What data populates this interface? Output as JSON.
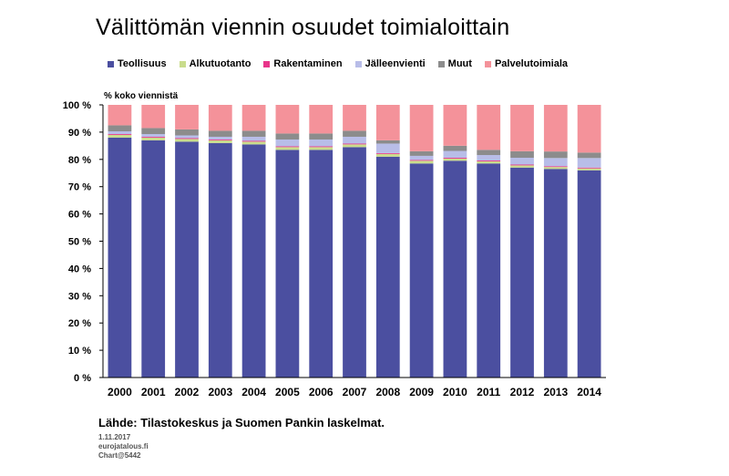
{
  "title": "Välittömän viennin osuudet toimialoittain",
  "footer": {
    "source": "Lähde: Tilastokeskus ja Suomen Pankin laskelmat.",
    "date": "1.11.2017",
    "site": "eurojatalous.fi",
    "chart_id": "Chart@5442"
  },
  "chart_data": {
    "type": "bar",
    "stacked": true,
    "title": "Välittömän viennin osuudet toimialoittain",
    "ylabel": "% koko viennistä",
    "ylim": [
      0,
      100
    ],
    "yticks": [
      "0 %",
      "10 %",
      "20 %",
      "30 %",
      "40 %",
      "50 %",
      "60 %",
      "70 %",
      "80 %",
      "90 %",
      "100 %"
    ],
    "grid": false,
    "legend_position": "top",
    "categories": [
      "2000",
      "2001",
      "2002",
      "2003",
      "2004",
      "2005",
      "2006",
      "2007",
      "2008",
      "2009",
      "2010",
      "2011",
      "2012",
      "2013",
      "2014"
    ],
    "series": [
      {
        "name": "Teollisuus",
        "color": "#4b4fa0",
        "values": [
          88,
          87,
          86.5,
          86,
          85.5,
          83.5,
          83.5,
          84.5,
          81,
          78.5,
          79.5,
          78.5,
          77,
          76.5,
          76
        ]
      },
      {
        "name": "Alkutuotanto",
        "color": "#c9dc8c",
        "values": [
          1,
          1,
          1,
          1,
          1,
          1,
          1,
          1,
          1,
          1,
          0.8,
          0.8,
          0.8,
          0.7,
          0.7
        ]
      },
      {
        "name": "Rakentaminen",
        "color": "#e8358a",
        "values": [
          0.3,
          0.3,
          0.3,
          0.3,
          0.3,
          0.3,
          0.3,
          0.3,
          0.3,
          0.3,
          0.3,
          0.3,
          0.3,
          0.3,
          0.3
        ]
      },
      {
        "name": "Jälleenvienti",
        "color": "#b8bde8",
        "values": [
          1,
          1,
          1,
          1,
          1.5,
          2.5,
          2.5,
          2.5,
          3.5,
          1.5,
          2.5,
          2,
          2.5,
          3,
          3.5
        ]
      },
      {
        "name": "Muut",
        "color": "#8c8c8c",
        "values": [
          2.2,
          2.2,
          2.2,
          2.2,
          2.2,
          2.2,
          2.2,
          2.2,
          1.2,
          1.7,
          1.9,
          1.9,
          2.4,
          2.4,
          2.0
        ]
      },
      {
        "name": "Palvelutoimiala",
        "color": "#f4929a",
        "values": [
          7.5,
          8.5,
          9,
          9.5,
          9.5,
          10.5,
          10.5,
          9.5,
          13,
          17,
          15,
          16.5,
          17,
          17.1,
          17.5
        ]
      }
    ]
  }
}
